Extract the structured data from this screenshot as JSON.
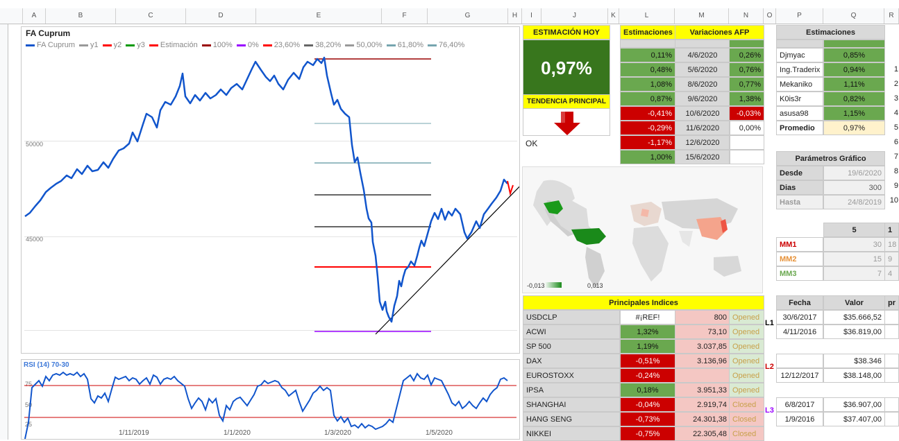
{
  "columns": [
    "A",
    "B",
    "C",
    "D",
    "E",
    "F",
    "G",
    "H",
    "I",
    "J",
    "K",
    "L",
    "M",
    "N",
    "O",
    "P",
    "Q",
    "R"
  ],
  "row_numbers": [
    "",
    "",
    "",
    "",
    "",
    "",
    "",
    "",
    "",
    "",
    "",
    "",
    "",
    "",
    "",
    "",
    "",
    "",
    "",
    "",
    "",
    "",
    "",
    "",
    "",
    "",
    "",
    ""
  ],
  "main_chart": {
    "title": "FA Cuprum",
    "legend": [
      {
        "label": "FA Cuprum",
        "color": "#1155cc"
      },
      {
        "label": "y1",
        "color": "#999999"
      },
      {
        "label": "y2",
        "color": "#ff0000"
      },
      {
        "label": "y3",
        "color": "#009900"
      },
      {
        "label": "Estimación",
        "color": "#ff0000"
      },
      {
        "label": "100%",
        "color": "#990000"
      },
      {
        "label": "0%",
        "color": "#9900ff"
      },
      {
        "label": "23,60%",
        "color": "#ff0000"
      },
      {
        "label": "38,20%",
        "color": "#666666"
      },
      {
        "label": "50,00%",
        "color": "#999999"
      },
      {
        "label": "61,80%",
        "color": "#76a5af"
      },
      {
        "label": "76,40%",
        "color": "#76a5af"
      }
    ],
    "y_ticks": [
      "50000",
      "45000"
    ]
  },
  "rsi_chart": {
    "title": "RSI (14) 70-30",
    "y_ticks": [
      "75",
      "50",
      "25"
    ],
    "x_ticks": [
      "1/11/2019",
      "1/1/2020",
      "1/3/2020",
      "1/5/2020"
    ]
  },
  "estimacion_hoy": {
    "header": "ESTIMACIÓN HOY",
    "value": "0,97%",
    "tendencia_header": "TENDENCIA PRINCIPAL",
    "status": "OK"
  },
  "estimaciones_afp": {
    "h1": "Estimaciones",
    "h2": "Variaciones AFP",
    "rows": [
      {
        "est": "0,11%",
        "date": "4/6/2020",
        "var": "0,26%"
      },
      {
        "est": "0,48%",
        "date": "5/6/2020",
        "var": "0,76%"
      },
      {
        "est": "1,08%",
        "date": "8/6/2020",
        "var": "0,77%"
      },
      {
        "est": "0,87%",
        "date": "9/6/2020",
        "var": "1,38%"
      },
      {
        "est": "-0,41%",
        "date": "10/6/2020",
        "var": "-0,03%"
      },
      {
        "est": "-0,29%",
        "date": "11/6/2020",
        "var": "0,00%"
      },
      {
        "est": "-1,17%",
        "date": "12/6/2020",
        "var": ""
      },
      {
        "est": "1,00%",
        "date": "15/6/2020",
        "var": ""
      }
    ]
  },
  "estimaciones_users": {
    "header": "Estimaciones",
    "rows": [
      {
        "name": "Djmyac",
        "val": "0,85%"
      },
      {
        "name": "Ing.Traderix",
        "val": "0,94%"
      },
      {
        "name": "Mekaniko",
        "val": "1,11%"
      },
      {
        "name": "K0is3r",
        "val": "0,82%"
      },
      {
        "name": "asusa98",
        "val": "1,15%"
      },
      {
        "name": "Promedio",
        "val": "0,97%"
      }
    ],
    "side_nums": [
      "1",
      "2",
      "3",
      "4",
      "5",
      "6",
      "7",
      "8",
      "9",
      "10"
    ]
  },
  "parametros": {
    "header": "Parámetros Gráfico",
    "desde_label": "Desde",
    "desde_val": "19/6/2020",
    "dias_label": "Dias",
    "dias_val": "300",
    "hasta_label": "Hasta",
    "hasta_val": "24/8/2019"
  },
  "mm": {
    "header": "5",
    "next": "1",
    "rows": [
      {
        "label": "MM1",
        "val": "30",
        "next": "18",
        "color": "#cc0000"
      },
      {
        "label": "MM2",
        "val": "15",
        "next": "9",
        "color": "#e69138"
      },
      {
        "label": "MM3",
        "val": "7",
        "next": "4",
        "color": "#6aa84f"
      }
    ]
  },
  "map": {
    "legend_min": "-0,013",
    "legend_max": "0,013"
  },
  "indices": {
    "header": "Principales Indices",
    "rows": [
      {
        "name": "USDCLP",
        "pct": "#¡REF!",
        "val": "800",
        "status": "Opened",
        "pc": "white"
      },
      {
        "name": "ACWI",
        "pct": "1,32%",
        "val": "73,10",
        "status": "Opened",
        "pc": "grn"
      },
      {
        "name": "SP 500",
        "pct": "1,19%",
        "val": "3.037,85",
        "status": "Opened",
        "pc": "grn"
      },
      {
        "name": "DAX",
        "pct": "-0,51%",
        "val": "3.136,96",
        "status": "Opened",
        "pc": "red"
      },
      {
        "name": "EUROSTOXX",
        "pct": "-0,24%",
        "val": "",
        "status": "Opened",
        "pc": "red"
      },
      {
        "name": "IPSA",
        "pct": "0,18%",
        "val": "3.951,33",
        "status": "Opened",
        "pc": "grn"
      },
      {
        "name": "SHANGHAI",
        "pct": "-0,04%",
        "val": "2.919,74",
        "status": "Closed",
        "pc": "red"
      },
      {
        "name": "HANG SENG",
        "pct": "-0,73%",
        "val": "24.301,38",
        "status": "Closed",
        "pc": "red"
      },
      {
        "name": "NIKKEI",
        "pct": "-0,75%",
        "val": "22.305,48",
        "status": "Closed",
        "pc": "red"
      }
    ]
  },
  "fecha_valor": {
    "h_fecha": "Fecha",
    "h_valor": "Valor",
    "h_extra": "pr",
    "groups": [
      {
        "label": "L1",
        "color": "#000000",
        "rows": [
          {
            "fecha": "30/6/2017",
            "valor": "$35.666,52"
          },
          {
            "fecha": "4/11/2016",
            "valor": "$36.819,00"
          }
        ]
      },
      {
        "label": "L2",
        "color": "#cc0000",
        "rows": [
          {
            "fecha": "",
            "valor": "$38.346"
          },
          {
            "fecha": "12/12/2017",
            "valor": "$38.148,00"
          }
        ]
      },
      {
        "label": "L3",
        "color": "#9900ff",
        "rows": [
          {
            "fecha": "6/8/2017",
            "valor": "$36.907,00"
          },
          {
            "fecha": "1/9/2016",
            "valor": "$37.407,00"
          }
        ]
      }
    ]
  }
}
